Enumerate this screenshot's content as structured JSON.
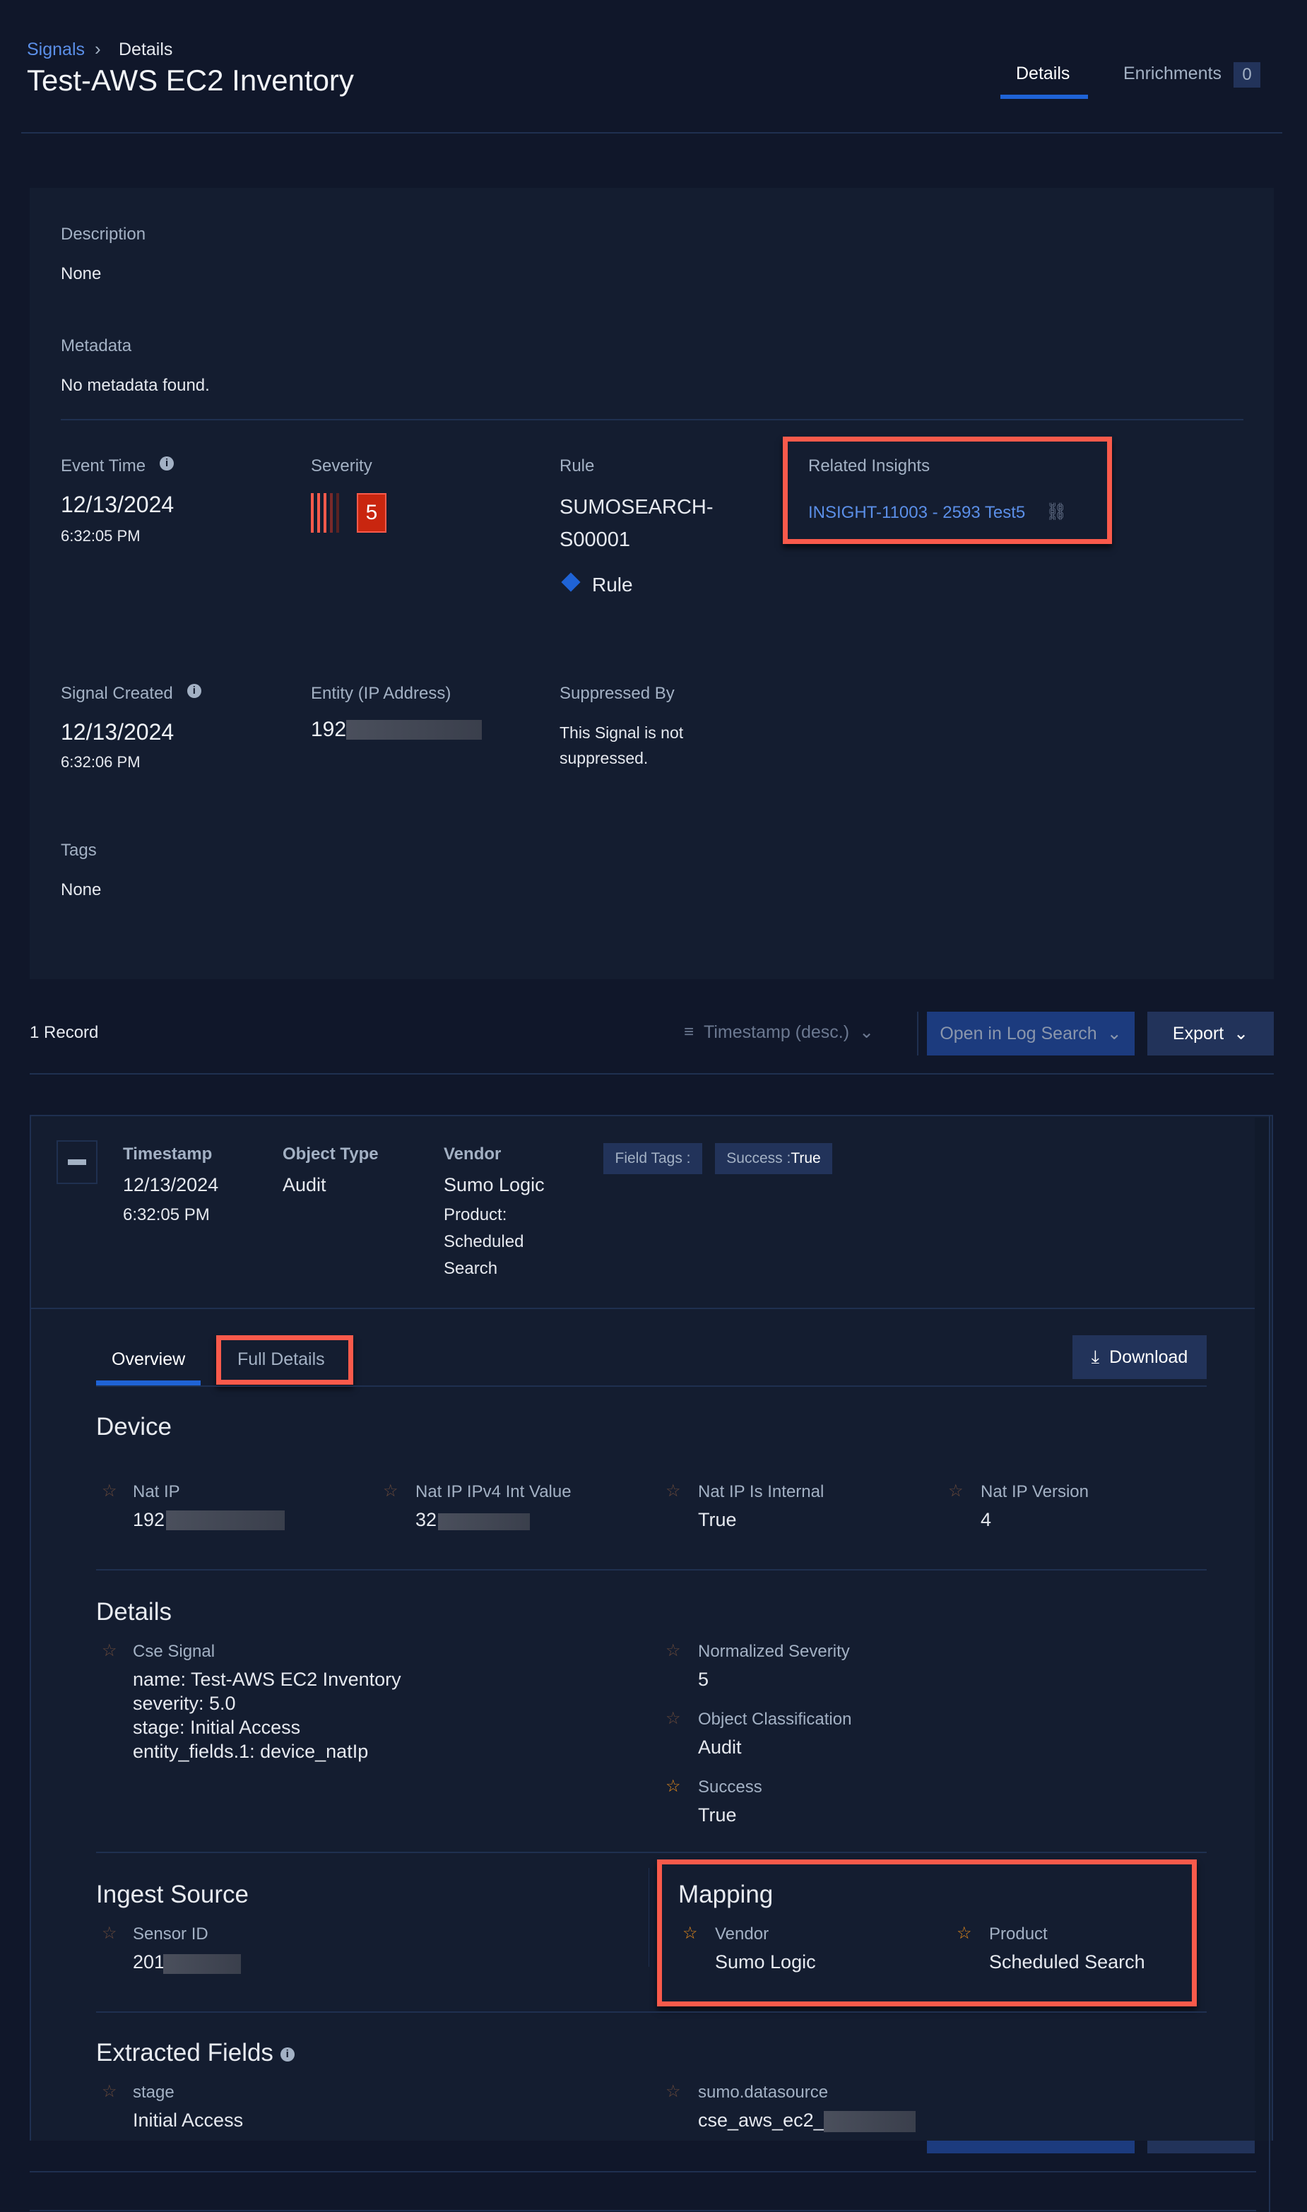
{
  "header": {
    "breadcrumb": {
      "parent": "Signals",
      "current": "Details"
    },
    "title": "Test-AWS EC2 Inventory",
    "tabs": [
      {
        "label": "Details",
        "active": true
      },
      {
        "label": "Enrichments",
        "badge": "0"
      }
    ]
  },
  "summary": {
    "description": {
      "label": "Description",
      "value": "None"
    },
    "metadata": {
      "label": "Metadata",
      "value": "No metadata found."
    },
    "event_time": {
      "label": "Event Time",
      "date": "12/13/2024",
      "time": "6:32:05 PM"
    },
    "severity": {
      "label": "Severity",
      "value": "5",
      "color": "#c9260f"
    },
    "rule": {
      "label": "Rule",
      "line1": "SUMOSEARCH-",
      "line2": "S00001",
      "type": "Rule"
    },
    "related_insights": {
      "label": "Related Insights",
      "link": "INSIGHT-11003 - 2593 Test5"
    },
    "signal_created": {
      "label": "Signal Created",
      "date": "12/13/2024",
      "time": "6:32:06 PM"
    },
    "entity": {
      "label": "Entity (IP Address)",
      "value": "192"
    },
    "suppressed_by": {
      "label": "Suppressed By",
      "line1": "This Signal is not",
      "line2": "suppressed."
    },
    "tags": {
      "label": "Tags",
      "value": "None"
    }
  },
  "records_toolbar": {
    "count": "1 Record",
    "sort": "Timestamp (desc.)",
    "open_log_search": "Open in Log Search",
    "export": "Export"
  },
  "record": {
    "timestamp": {
      "label": "Timestamp",
      "date": "12/13/2024",
      "time": "6:32:05 PM"
    },
    "object_type": {
      "label": "Object Type",
      "value": "Audit"
    },
    "vendor": {
      "label": "Vendor",
      "value": "Sumo Logic",
      "product_lines": [
        "Product:",
        "Scheduled",
        "Search"
      ]
    },
    "field_tags_label": "Field Tags :",
    "tag": {
      "key": "Success : ",
      "value": "True"
    },
    "tabs": [
      {
        "label": "Overview",
        "active": true
      },
      {
        "label": "Full Details"
      }
    ],
    "download": "Download",
    "device": {
      "heading": "Device",
      "fields": [
        {
          "label": "Nat IP",
          "value": "192"
        },
        {
          "label": "Nat IP IPv4 Int Value",
          "value": "32"
        },
        {
          "label": "Nat IP Is Internal",
          "value": "True"
        },
        {
          "label": "Nat IP Version",
          "value": "4"
        }
      ]
    },
    "details": {
      "heading": "Details",
      "cse_signal": {
        "label": "Cse Signal",
        "lines": [
          "name: Test-AWS EC2 Inventory",
          "severity: 5.0",
          "stage: Initial Access",
          "entity_fields.1: device_natIp"
        ]
      },
      "normalized_severity": {
        "label": "Normalized Severity",
        "value": "5"
      },
      "object_classification": {
        "label": "Object Classification",
        "value": "Audit"
      },
      "success": {
        "label": "Success",
        "value": "True"
      }
    },
    "ingest_source": {
      "heading": "Ingest Source",
      "sensor_id": {
        "label": "Sensor ID",
        "value": "201"
      }
    },
    "mapping": {
      "heading": "Mapping",
      "vendor": {
        "label": "Vendor",
        "value": "Sumo Logic"
      },
      "product": {
        "label": "Product",
        "value": "Scheduled Search"
      }
    },
    "extracted_fields": {
      "heading": "Extracted Fields",
      "stage": {
        "label": "stage",
        "value": "Initial Access"
      },
      "datasource": {
        "label": "sumo.datasource",
        "value": "cse_aws_ec2_"
      }
    }
  },
  "colors": {
    "accent": "#1f63d6",
    "highlight": "#fa5a4b",
    "link": "#5b8fe8",
    "star_active": "#e58a1a"
  }
}
